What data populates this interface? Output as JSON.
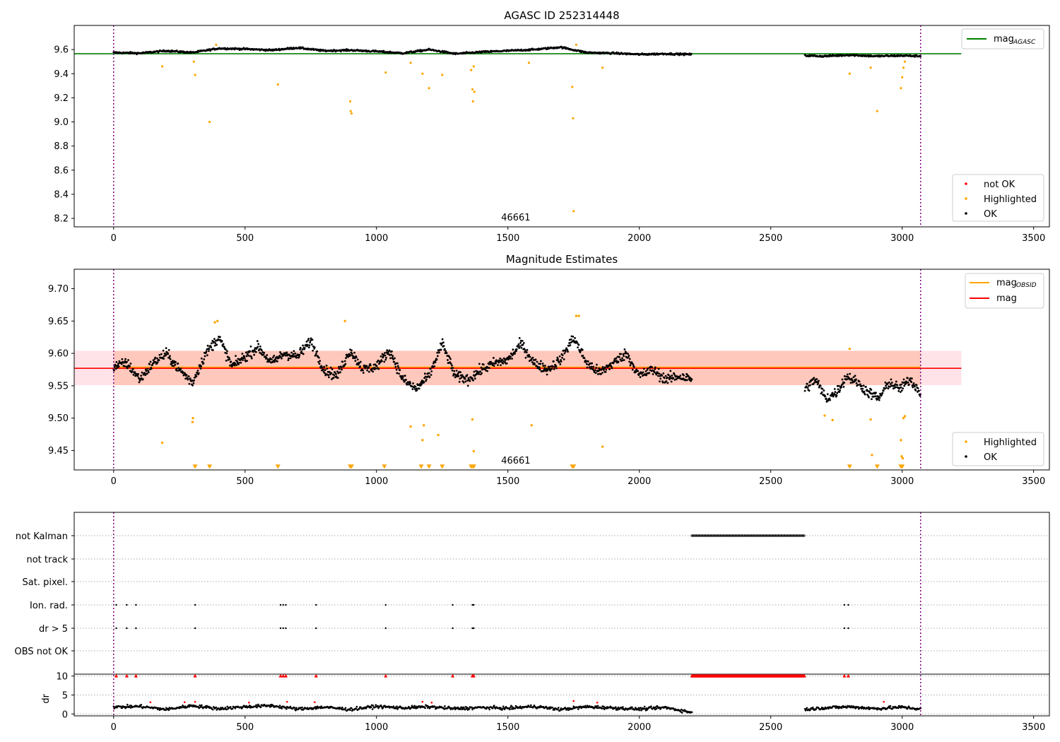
{
  "chart_data": [
    {
      "type": "scatter",
      "title": "AGASC ID 252314448",
      "annotation": "46661",
      "x_ticks": [
        "0",
        "500",
        "1000",
        "1500",
        "2000",
        "2500",
        "3000",
        "3500"
      ],
      "y_ticks": [
        "8.2",
        "8.4",
        "8.6",
        "8.8",
        "9.0",
        "9.2",
        "9.4",
        "9.6"
      ],
      "xlim": [
        -150,
        3560
      ],
      "ylim": [
        8.13,
        9.8
      ],
      "vlines": [
        0,
        3070
      ],
      "hline": {
        "name": "mag",
        "subscript": "AGASC",
        "value": 9.565,
        "xrange": [
          -150,
          3225
        ],
        "color": "#008000"
      },
      "legend_top": [
        {
          "label": "mag",
          "subscript": "AGASC",
          "color": "#008000",
          "kind": "line"
        }
      ],
      "legend_bottom": [
        {
          "label": "not OK",
          "color": "#ff0000"
        },
        {
          "label": "Highlighted",
          "color": "#ffa500"
        },
        {
          "label": "OK",
          "color": "#000000"
        }
      ],
      "series": [
        {
          "name": "OK",
          "color": "#000000",
          "segments": [
            {
              "x": [
                0,
                100,
                200,
                300,
                400,
                500,
                600,
                700,
                800,
                900,
                1000,
                1100,
                1200,
                1300,
                1400,
                1500,
                1600,
                1700,
                1800,
                1900,
                2000,
                2100,
                2200
              ],
              "y": [
                9.575,
                9.57,
                9.59,
                9.575,
                9.61,
                9.605,
                9.595,
                9.615,
                9.59,
                9.595,
                9.585,
                9.57,
                9.6,
                9.565,
                9.58,
                9.59,
                9.6,
                9.62,
                9.575,
                9.57,
                9.56,
                9.565,
                9.56
              ]
            },
            {
              "x": [
                2630,
                2700,
                2800,
                2900,
                3000,
                3070
              ],
              "y": [
                9.55,
                9.545,
                9.555,
                9.545,
                9.55,
                9.545
              ]
            }
          ]
        },
        {
          "name": "Highlighted",
          "color": "#ffa500",
          "points": [
            [
              185,
              9.46
            ],
            [
              305,
              9.5
            ],
            [
              310,
              9.39
            ],
            [
              365,
              9.0
            ],
            [
              390,
              9.64
            ],
            [
              625,
              9.31
            ],
            [
              900,
              9.17
            ],
            [
              902,
              9.09
            ],
            [
              905,
              9.07
            ],
            [
              1035,
              9.41
            ],
            [
              1130,
              9.49
            ],
            [
              1175,
              9.4
            ],
            [
              1200,
              9.28
            ],
            [
              1250,
              9.39
            ],
            [
              1360,
              9.43
            ],
            [
              1365,
              9.27
            ],
            [
              1367,
              9.17
            ],
            [
              1372,
              9.25
            ],
            [
              1370,
              9.46
            ],
            [
              1580,
              9.49
            ],
            [
              1745,
              9.29
            ],
            [
              1748,
              9.03
            ],
            [
              1750,
              8.26
            ],
            [
              1760,
              9.64
            ],
            [
              1860,
              9.45
            ],
            [
              2800,
              9.4
            ],
            [
              2880,
              9.45
            ],
            [
              2905,
              9.09
            ],
            [
              2995,
              9.28
            ],
            [
              3000,
              9.37
            ],
            [
              3005,
              9.45
            ],
            [
              3010,
              9.5
            ]
          ]
        }
      ]
    },
    {
      "type": "scatter",
      "title": "Magnitude Estimates",
      "annotation": "46661",
      "x_ticks": [
        "0",
        "500",
        "1000",
        "1500",
        "2000",
        "2500",
        "3000",
        "3500"
      ],
      "y_ticks": [
        "9.45",
        "9.50",
        "9.55",
        "9.60",
        "9.65",
        "9.70"
      ],
      "xlim": [
        -150,
        3560
      ],
      "ylim": [
        9.42,
        9.73
      ],
      "vlines": [
        0,
        3070
      ],
      "hline": {
        "name": "mag",
        "value": 9.577,
        "xrange": [
          -150,
          3225
        ],
        "color": "#ff0000"
      },
      "band": {
        "low": 9.551,
        "high": 9.604,
        "xrange_main": [
          0,
          3070
        ],
        "xrange_full": [
          -150,
          3225
        ]
      },
      "legend_top": [
        {
          "label": "mag",
          "subscript": "OBSID",
          "color": "#ffa500",
          "kind": "line"
        },
        {
          "label": "mag",
          "color": "#ff0000",
          "kind": "line"
        }
      ],
      "legend_bottom": [
        {
          "label": "Highlighted",
          "color": "#ffa500"
        },
        {
          "label": "OK",
          "color": "#000000"
        }
      ],
      "series": [
        {
          "name": "OK",
          "color": "#000000",
          "segments": [
            {
              "x": [
                0,
                50,
                100,
                150,
                200,
                250,
                300,
                350,
                400,
                450,
                500,
                550,
                600,
                650,
                700,
                750,
                800,
                850,
                900,
                950,
                1000,
                1050,
                1100,
                1150,
                1200,
                1250,
                1300,
                1350,
                1400,
                1450,
                1500,
                1550,
                1600,
                1650,
                1700,
                1750,
                1800,
                1850,
                1900,
                1950,
                2000,
                2050,
                2100,
                2150,
                2200
              ],
              "y": [
                9.58,
                9.585,
                9.56,
                9.585,
                9.6,
                9.575,
                9.555,
                9.6,
                9.625,
                9.58,
                9.595,
                9.61,
                9.585,
                9.6,
                9.595,
                9.62,
                9.575,
                9.565,
                9.605,
                9.575,
                9.58,
                9.605,
                9.56,
                9.545,
                9.565,
                9.615,
                9.565,
                9.56,
                9.575,
                9.585,
                9.59,
                9.615,
                9.585,
                9.575,
                9.59,
                9.625,
                9.585,
                9.57,
                9.585,
                9.6,
                9.565,
                9.575,
                9.56,
                9.565,
                9.56
              ]
            },
            {
              "x": [
                2630,
                2670,
                2710,
                2750,
                2790,
                2830,
                2870,
                2910,
                2950,
                2990,
                3030,
                3070
              ],
              "y": [
                9.545,
                9.56,
                9.53,
                9.54,
                9.565,
                9.555,
                9.54,
                9.53,
                9.555,
                9.545,
                9.56,
                9.54
              ]
            }
          ]
        },
        {
          "name": "Highlighted",
          "color": "#ffa500",
          "points": [
            [
              185,
              9.462
            ],
            [
              300,
              9.494
            ],
            [
              302,
              9.5
            ],
            [
              385,
              9.648
            ],
            [
              395,
              9.65
            ],
            [
              880,
              9.65
            ],
            [
              1130,
              9.487
            ],
            [
              1175,
              9.466
            ],
            [
              1180,
              9.489
            ],
            [
              1235,
              9.474
            ],
            [
              1365,
              9.498
            ],
            [
              1370,
              9.449
            ],
            [
              1590,
              9.489
            ],
            [
              1760,
              9.658
            ],
            [
              1770,
              9.658
            ],
            [
              1860,
              9.456
            ],
            [
              2705,
              9.504
            ],
            [
              2735,
              9.497
            ],
            [
              2800,
              9.607
            ],
            [
              2880,
              9.498
            ],
            [
              2885,
              9.443
            ],
            [
              2995,
              9.466
            ],
            [
              2998,
              9.441
            ],
            [
              3002,
              9.438
            ],
            [
              3005,
              9.5
            ],
            [
              3010,
              9.503
            ]
          ]
        },
        {
          "name": "Highlighted (off-scale)",
          "color": "#ffa500",
          "marker": "triangle-down",
          "points": [
            [
              310,
              9.425
            ],
            [
              365,
              9.425
            ],
            [
              625,
              9.425
            ],
            [
              900,
              9.425
            ],
            [
              905,
              9.425
            ],
            [
              1030,
              9.425
            ],
            [
              1170,
              9.425
            ],
            [
              1200,
              9.425
            ],
            [
              1250,
              9.425
            ],
            [
              1360,
              9.425
            ],
            [
              1365,
              9.425
            ],
            [
              1370,
              9.425
            ],
            [
              1745,
              9.425
            ],
            [
              1750,
              9.425
            ],
            [
              2800,
              9.425
            ],
            [
              2905,
              9.425
            ],
            [
              2995,
              9.425
            ],
            [
              3000,
              9.425
            ]
          ]
        }
      ]
    },
    {
      "type": "scatter",
      "title": "",
      "x_ticks": [
        "0",
        "500",
        "1000",
        "1500",
        "2000",
        "2500",
        "3000",
        "3500"
      ],
      "xlim": [
        -150,
        3560
      ],
      "vlines": [
        0,
        3070
      ],
      "flag_rows": [
        "not Kalman",
        "not track",
        "Sat. pixel.",
        "Ion. rad.",
        "dr > 5",
        "OBS not OK"
      ],
      "flags": {
        "not Kalman": {
          "range": [
            2200,
            2630
          ]
        },
        "not track": {
          "points": []
        },
        "Sat. pixel.": {
          "points": []
        },
        "Ion. rad.": {
          "points": [
            10,
            50,
            85,
            310,
            635,
            645,
            655,
            770,
            1035,
            1290,
            1365,
            1370,
            2780,
            2795
          ]
        },
        "dr > 5": {
          "points": [
            10,
            50,
            85,
            310,
            635,
            645,
            655,
            770,
            1035,
            1290,
            1365,
            1370,
            2780,
            2795
          ]
        },
        "OBS not OK": {
          "points": []
        }
      },
      "dr": {
        "ylabel": "dr",
        "y_ticks": [
          "0",
          "5",
          "10"
        ],
        "ylim": [
          -0.5,
          10.5
        ],
        "clipped_red_points": [
          10,
          50,
          85,
          310,
          635,
          645,
          655,
          770,
          1035,
          1290,
          1365,
          1370,
          2780,
          2795
        ],
        "clipped_red_range": [
          2200,
          2630
        ],
        "black_segments": [
          {
            "x": [
              0,
              100,
              200,
              300,
              400,
              500,
              600,
              700,
              800,
              900,
              1000,
              1100,
              1200,
              1300,
              1400,
              1500,
              1600,
              1700,
              1800,
              1900,
              2000,
              2100,
              2200
            ],
            "y": [
              1.8,
              2.0,
              1.2,
              2.2,
              1.4,
              1.9,
              2.2,
              1.3,
              1.8,
              1.2,
              2.0,
              1.6,
              1.9,
              1.4,
              1.7,
              1.5,
              2.0,
              1.2,
              1.9,
              1.6,
              1.3,
              1.7,
              0.4
            ]
          },
          {
            "x": [
              2630,
              2700,
              2800,
              2900,
              3000,
              3070
            ],
            "y": [
              1.2,
              1.6,
              1.9,
              1.4,
              1.8,
              1.3
            ]
          }
        ],
        "red_points": [
          [
            140,
            3.1
          ],
          [
            270,
            3.1
          ],
          [
            310,
            3.2
          ],
          [
            515,
            3.0
          ],
          [
            660,
            3.2
          ],
          [
            765,
            3.1
          ],
          [
            1175,
            3.2
          ],
          [
            1210,
            3.0
          ],
          [
            1750,
            3.4
          ],
          [
            1840,
            3.0
          ],
          [
            2930,
            3.2
          ]
        ]
      }
    }
  ]
}
